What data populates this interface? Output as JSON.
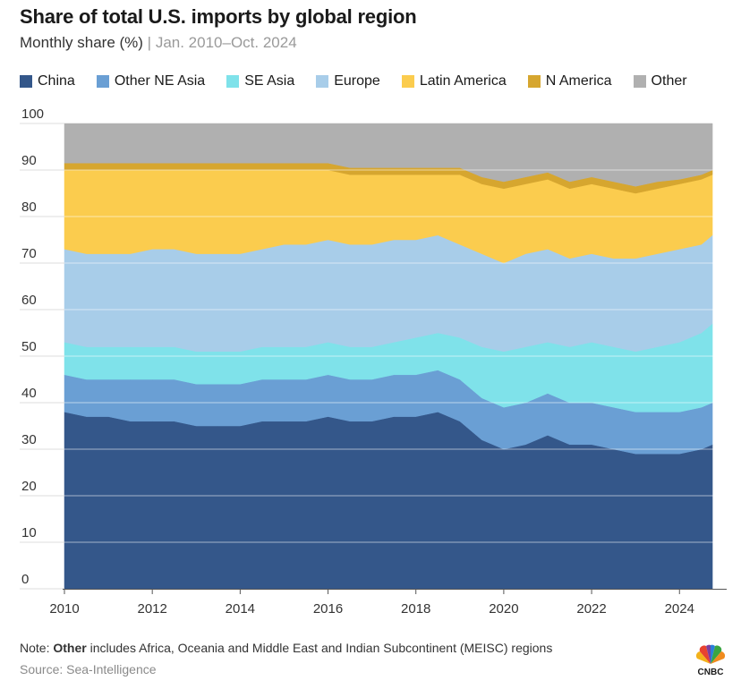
{
  "header": {
    "title": "Share of total U.S. imports by global region",
    "subtitle_main": "Monthly share (%)",
    "subtitle_sep": " | ",
    "subtitle_range": "Jan. 2010–Oct. 2024"
  },
  "footer": {
    "note_prefix": "Note: ",
    "note_bold": "Other",
    "note_rest": " includes Africa, Oceania and Middle East and Indian Subcontinent (MEISC) regions",
    "source": "Source: Sea-Intelligence",
    "logo_text": "CNBC"
  },
  "chart_data": {
    "type": "area",
    "stacked": true,
    "title": "Share of total U.S. imports by global region",
    "subtitle": "Monthly share (%) | Jan. 2010–Oct. 2024",
    "xlabel": "",
    "ylabel": "",
    "x_start": "2010-01",
    "x_end": "2024-10",
    "xlim": [
      2010,
      2024.83
    ],
    "ylim": [
      0,
      100
    ],
    "yticks": [
      0,
      10,
      20,
      30,
      40,
      50,
      60,
      70,
      80,
      90,
      100
    ],
    "xticks": [
      2010,
      2012,
      2014,
      2016,
      2018,
      2020,
      2022,
      2024
    ],
    "legend_position": "top",
    "grid": true,
    "x": [
      2010,
      2010.5,
      2011,
      2011.5,
      2012,
      2012.5,
      2013,
      2013.5,
      2014,
      2014.5,
      2015,
      2015.5,
      2016,
      2016.5,
      2017,
      2017.5,
      2018,
      2018.5,
      2019,
      2019.5,
      2020,
      2020.5,
      2021,
      2021.5,
      2022,
      2022.5,
      2023,
      2023.5,
      2024,
      2024.5,
      2024.75
    ],
    "series": [
      {
        "name": "China",
        "color": "#34578a",
        "values": [
          38,
          37,
          37,
          36,
          36,
          36,
          35,
          35,
          35,
          36,
          36,
          36,
          37,
          36,
          36,
          37,
          37,
          38,
          36,
          32,
          30,
          31,
          33,
          31,
          31,
          30,
          29,
          29,
          29,
          30,
          31
        ]
      },
      {
        "name": "Other NE Asia",
        "color": "#6a9fd4",
        "values": [
          8,
          8,
          8,
          9,
          9,
          9,
          9,
          9,
          9,
          9,
          9,
          9,
          9,
          9,
          9,
          9,
          9,
          9,
          9,
          9,
          9,
          9,
          9,
          9,
          9,
          9,
          9,
          9,
          9,
          9,
          9
        ]
      },
      {
        "name": "SE Asia",
        "color": "#7fe2ea",
        "values": [
          7,
          7,
          7,
          7,
          7,
          7,
          7,
          7,
          7,
          7,
          7,
          7,
          7,
          7,
          7,
          7,
          8,
          8,
          9,
          11,
          12,
          12,
          11,
          12,
          13,
          13,
          13,
          14,
          15,
          16,
          17
        ]
      },
      {
        "name": "Europe",
        "color": "#a8cde9",
        "values": [
          20,
          20,
          20,
          20,
          21,
          21,
          21,
          21,
          21,
          21,
          22,
          22,
          22,
          22,
          22,
          22,
          21,
          21,
          20,
          20,
          19,
          20,
          20,
          19,
          19,
          19,
          20,
          20,
          20,
          19,
          19
        ]
      },
      {
        "name": "Latin America",
        "color": "#fbcc4e",
        "values": [
          17,
          18,
          18,
          18,
          17,
          17,
          18,
          18,
          18,
          17,
          16,
          16,
          15,
          15,
          15,
          14,
          14,
          13,
          15,
          15,
          16,
          15,
          15,
          15,
          15,
          15,
          14,
          14,
          14,
          14,
          13
        ]
      },
      {
        "name": "N America",
        "color": "#d6a62f",
        "values": [
          1.5,
          1.5,
          1.5,
          1.5,
          1.5,
          1.5,
          1.5,
          1.5,
          1.5,
          1.5,
          1.5,
          1.5,
          1.5,
          1.5,
          1.5,
          1.5,
          1.5,
          1.5,
          1.5,
          1.5,
          1.5,
          1.5,
          1.5,
          1.5,
          1.5,
          1.5,
          1.5,
          1.5,
          1,
          1,
          1
        ]
      },
      {
        "name": "Other",
        "color": "#b0b0b0",
        "values": [
          8.5,
          8.5,
          8.5,
          8.5,
          8.5,
          8.5,
          8.5,
          8.5,
          8.5,
          8.5,
          8.5,
          8.5,
          8.5,
          9.5,
          9.5,
          9.5,
          9.5,
          9.5,
          9.5,
          11.5,
          12.5,
          11.5,
          10.5,
          12.5,
          11.5,
          12.5,
          13.5,
          12.5,
          12,
          11,
          10
        ]
      }
    ]
  }
}
